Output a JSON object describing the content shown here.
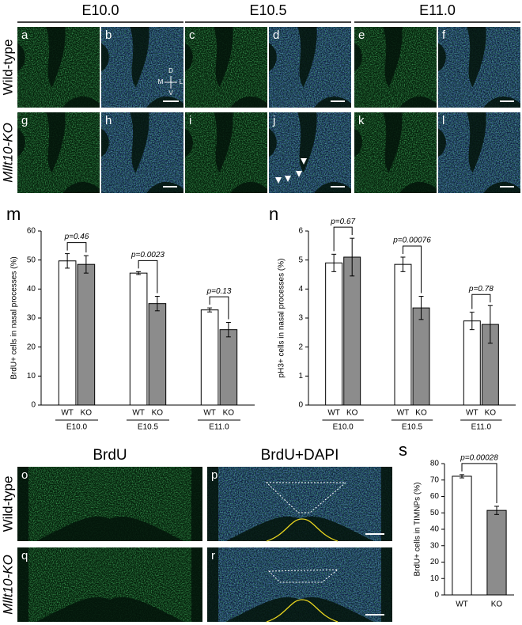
{
  "figure": {
    "columns": [
      "E10.0",
      "E10.5",
      "E11.0"
    ],
    "rows": [
      "Wild-type",
      "Mllt10-KO"
    ],
    "panels": [
      "a",
      "b",
      "c",
      "d",
      "e",
      "f",
      "g",
      "h",
      "i",
      "j",
      "k",
      "l"
    ],
    "orientation": [
      "D",
      "M",
      "L",
      "V"
    ],
    "bottom_columns": [
      "BrdU",
      "BrdU+DAPI"
    ],
    "bottom_panels": [
      "o",
      "p",
      "q",
      "r"
    ]
  },
  "chart_data": [
    {
      "type": "grouped_bar",
      "label": "m",
      "ylabel": "BrdU+ cells in nasal processes (%)",
      "categories": [
        "E10.0",
        "E10.5",
        "E11.0"
      ],
      "series": [
        {
          "name": "WT",
          "color": "#ffffff",
          "values": [
            49.7,
            45.5,
            32.8
          ],
          "errors": [
            2.5,
            0.5,
            0.7
          ]
        },
        {
          "name": "KO",
          "color": "#8c8c8c",
          "values": [
            48.5,
            35,
            26
          ],
          "errors": [
            3,
            2.5,
            2.5
          ]
        }
      ],
      "annotations": [
        "p=0.46",
        "p=0.0023",
        "p=0.13"
      ],
      "ylim": [
        0,
        60
      ],
      "yticks": [
        0,
        10,
        20,
        30,
        40,
        50,
        60
      ]
    },
    {
      "type": "grouped_bar",
      "label": "n",
      "ylabel": "pH3+ cells in nasal processes (%)",
      "categories": [
        "E10.0",
        "E10.5",
        "E11.0"
      ],
      "series": [
        {
          "name": "WT",
          "color": "#ffffff",
          "values": [
            4.9,
            4.85,
            2.9
          ],
          "errors": [
            0.3,
            0.25,
            0.3
          ]
        },
        {
          "name": "KO",
          "color": "#8c8c8c",
          "values": [
            5.1,
            3.35,
            2.78
          ],
          "errors": [
            0.65,
            0.4,
            0.65
          ]
        }
      ],
      "annotations": [
        "p=0.67",
        "p=0.00076",
        "p=0.78"
      ],
      "ylim": [
        0,
        6
      ],
      "yticks": [
        0,
        1,
        2,
        3,
        4,
        5,
        6
      ]
    },
    {
      "type": "bar",
      "label": "s",
      "ylabel": "BrdU+ cells in TIMNPs (%)",
      "categories": [
        "WT",
        "KO"
      ],
      "values": [
        72.3,
        51.5
      ],
      "errors": [
        1,
        2.5
      ],
      "colors": [
        "#ffffff",
        "#8c8c8c"
      ],
      "annotations": [
        "p=0.00028"
      ],
      "ylim": [
        0,
        80
      ],
      "yticks": [
        0,
        10,
        20,
        30,
        40,
        50,
        60,
        70,
        80
      ]
    }
  ]
}
